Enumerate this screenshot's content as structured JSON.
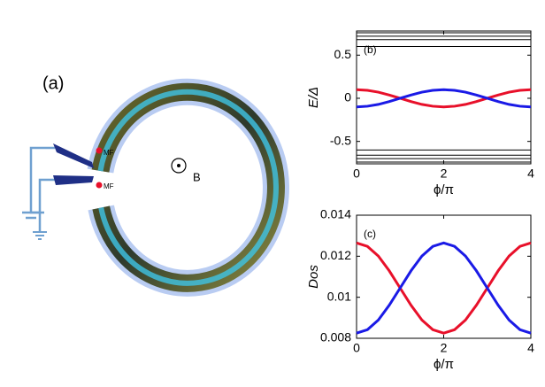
{
  "diagram": {
    "panel_label": "(a)",
    "majorana_labels": [
      "MF",
      "MF"
    ],
    "field_label": "B"
  },
  "chart_data": [
    {
      "type": "line",
      "label": "(b)",
      "x_label": "ϕ/π",
      "y_label": "E/Δ",
      "x": [
        0,
        0.25,
        0.5,
        0.75,
        1,
        1.25,
        1.5,
        1.75,
        2,
        2.25,
        2.5,
        2.75,
        3,
        3.25,
        3.5,
        3.75,
        4
      ],
      "xlim": [
        0,
        4
      ],
      "xticks": [
        0,
        2,
        4
      ],
      "ylim": [
        -0.76,
        0.78
      ],
      "yticks": [
        -0.5,
        0,
        0.5
      ],
      "series": [
        {
          "color": "#e8102a",
          "values": [
            0.1,
            0.092,
            0.071,
            0.038,
            0,
            -0.038,
            -0.071,
            -0.092,
            -0.1,
            -0.092,
            -0.071,
            -0.038,
            0,
            0.038,
            0.071,
            0.092,
            0.1
          ]
        },
        {
          "color": "#1a1ae6",
          "values": [
            -0.1,
            -0.092,
            -0.071,
            -0.038,
            0,
            0.038,
            0.071,
            0.092,
            0.1,
            0.092,
            0.071,
            0.038,
            0,
            -0.038,
            -0.071,
            -0.092,
            -0.1
          ]
        },
        {
          "color": "#000000",
          "x": [
            0,
            4
          ],
          "values": [
            0.76,
            0.76
          ]
        },
        {
          "color": "#000000",
          "x": [
            0,
            4
          ],
          "values": [
            0.72,
            0.72
          ]
        },
        {
          "color": "#000000",
          "x": [
            0,
            4
          ],
          "values": [
            0.68,
            0.68
          ]
        },
        {
          "color": "#000000",
          "x": [
            0,
            4
          ],
          "values": [
            0.6,
            0.6
          ]
        },
        {
          "color": "#000000",
          "x": [
            0,
            4
          ],
          "values": [
            -0.6,
            -0.6
          ]
        },
        {
          "color": "#000000",
          "x": [
            0,
            4
          ],
          "values": [
            -0.66,
            -0.66
          ]
        },
        {
          "color": "#000000",
          "x": [
            0,
            4
          ],
          "values": [
            -0.7,
            -0.7
          ]
        },
        {
          "color": "#000000",
          "x": [
            0,
            4
          ],
          "values": [
            -0.74,
            -0.74
          ]
        }
      ]
    },
    {
      "type": "line",
      "label": "(c)",
      "x_label": "ϕ/π",
      "y_label": "Dos",
      "x": [
        0,
        0.25,
        0.5,
        0.75,
        1,
        1.25,
        1.5,
        1.75,
        2,
        2.25,
        2.5,
        2.75,
        3,
        3.25,
        3.5,
        3.75,
        4
      ],
      "xlim": [
        0,
        4
      ],
      "xticks": [
        0,
        2,
        4
      ],
      "ylim": [
        0.008,
        0.014
      ],
      "yticks": [
        0.008,
        0.01,
        0.012,
        0.014
      ],
      "series": [
        {
          "color": "#e8102a",
          "values": [
            0.01265,
            0.01248,
            0.01201,
            0.01129,
            0.01045,
            0.00961,
            0.00889,
            0.00842,
            0.00825,
            0.00842,
            0.00889,
            0.00961,
            0.01045,
            0.01129,
            0.01201,
            0.01248,
            0.01265
          ]
        },
        {
          "color": "#1a1ae6",
          "values": [
            0.00825,
            0.00842,
            0.00889,
            0.00961,
            0.01045,
            0.01129,
            0.01201,
            0.01248,
            0.01265,
            0.01248,
            0.01201,
            0.01129,
            0.01045,
            0.00961,
            0.00889,
            0.00842,
            0.00825
          ]
        }
      ]
    }
  ]
}
